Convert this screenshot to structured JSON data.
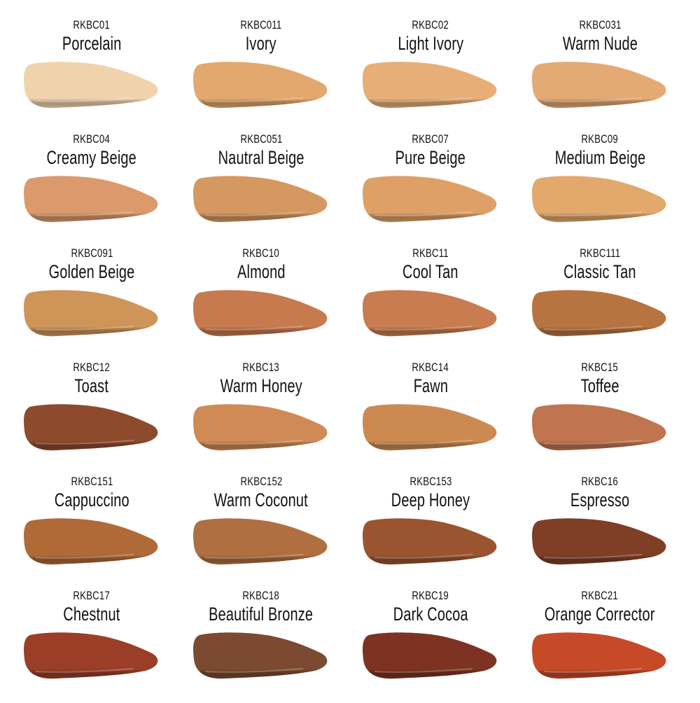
{
  "shades": [
    {
      "code": "RKBC01",
      "name": "Porcelain",
      "color": "#f0d3ad"
    },
    {
      "code": "RKBC011",
      "name": "Ivory",
      "color": "#e3a86e"
    },
    {
      "code": "RKBC02",
      "name": "Light Ivory",
      "color": "#e7ae78"
    },
    {
      "code": "RKBC031",
      "name": "Warm Nude",
      "color": "#e4aa74"
    },
    {
      "code": "RKBC04",
      "name": "Creamy Beige",
      "color": "#dc9a6c"
    },
    {
      "code": "RKBC051",
      "name": "Nautral Beige",
      "color": "#d59860"
    },
    {
      "code": "RKBC07",
      "name": "Pure Beige",
      "color": "#dfa067"
    },
    {
      "code": "RKBC09",
      "name": "Medium Beige",
      "color": "#e3a86c"
    },
    {
      "code": "RKBC091",
      "name": "Golden Beige",
      "color": "#cf9458"
    },
    {
      "code": "RKBC10",
      "name": "Almond",
      "color": "#c77a4e"
    },
    {
      "code": "RKBC11",
      "name": "Cool Tan",
      "color": "#c87c50"
    },
    {
      "code": "RKBC111",
      "name": "Classic Tan",
      "color": "#b87440"
    },
    {
      "code": "RKBC12",
      "name": "Toast",
      "color": "#8e4a2c"
    },
    {
      "code": "RKBC13",
      "name": "Warm Honey",
      "color": "#d08a55"
    },
    {
      "code": "RKBC14",
      "name": "Fawn",
      "color": "#cc8a52"
    },
    {
      "code": "RKBC15",
      "name": "Toffee",
      "color": "#c07550"
    },
    {
      "code": "RKBC151",
      "name": "Cappuccino",
      "color": "#b06a38"
    },
    {
      "code": "RKBC152",
      "name": "Warm Coconut",
      "color": "#b06f40"
    },
    {
      "code": "RKBC153",
      "name": "Deep Honey",
      "color": "#9a5530"
    },
    {
      "code": "RKBC16",
      "name": "Espresso",
      "color": "#7f3f26"
    },
    {
      "code": "RKBC17",
      "name": "Chestnut",
      "color": "#9a3e28"
    },
    {
      "code": "RKBC18",
      "name": "Beautiful Bronze",
      "color": "#7c4a30"
    },
    {
      "code": "RKBC19",
      "name": "Dark Cocoa",
      "color": "#7e3322"
    },
    {
      "code": "RKBC21",
      "name": "Orange Corrector",
      "color": "#c74a28"
    }
  ]
}
